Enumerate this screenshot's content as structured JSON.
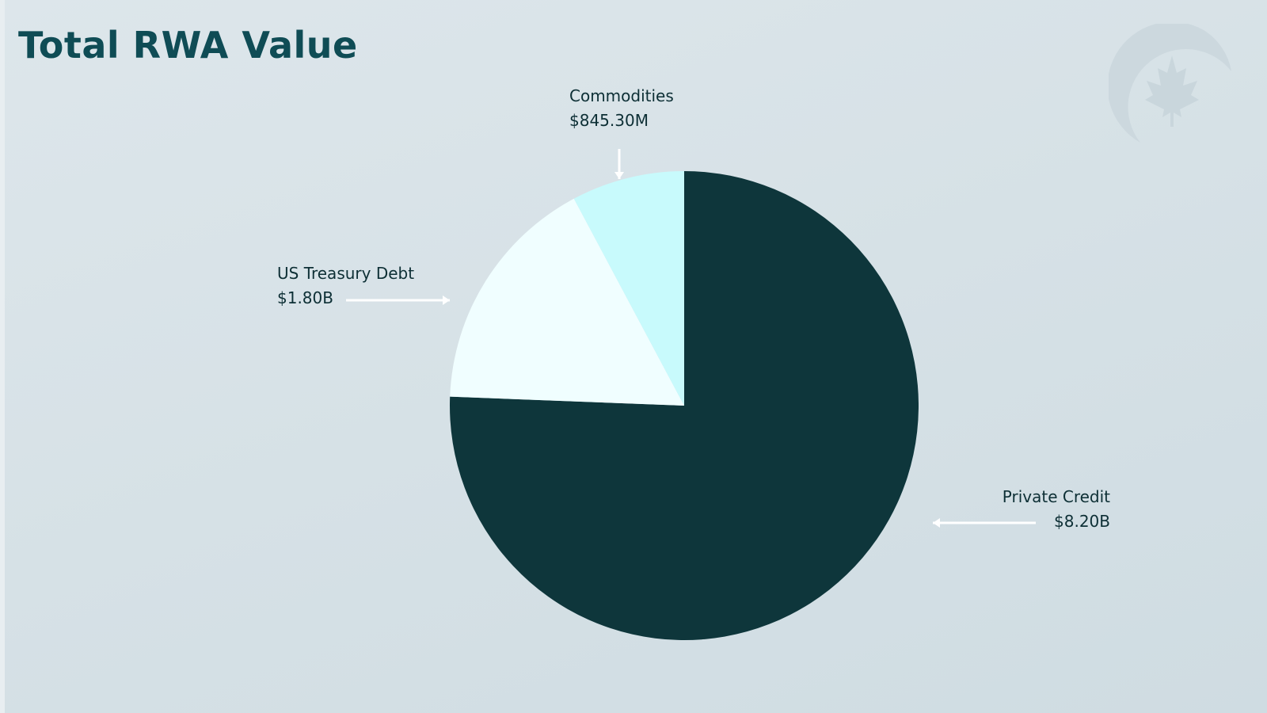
{
  "title": "Total RWA Value",
  "chart_data": {
    "type": "pie",
    "title": "Total RWA Value",
    "start_angle": "top, clockwise",
    "slices": [
      {
        "label": "Private Credit",
        "value": 8.2,
        "display": "$8.20B",
        "color": "#0e363b"
      },
      {
        "label": "US Treasury Debt",
        "value": 1.8,
        "display": "$1.80B",
        "color": "#f0feff"
      },
      {
        "label": "Commodities",
        "value": 0.8453,
        "display": "$845.30M",
        "color": "#c8fafc"
      }
    ],
    "unit": "billions USD",
    "legend": "none (callout labels with arrows)"
  },
  "logo": {
    "icon": "maple-leaf-circle-icon"
  }
}
